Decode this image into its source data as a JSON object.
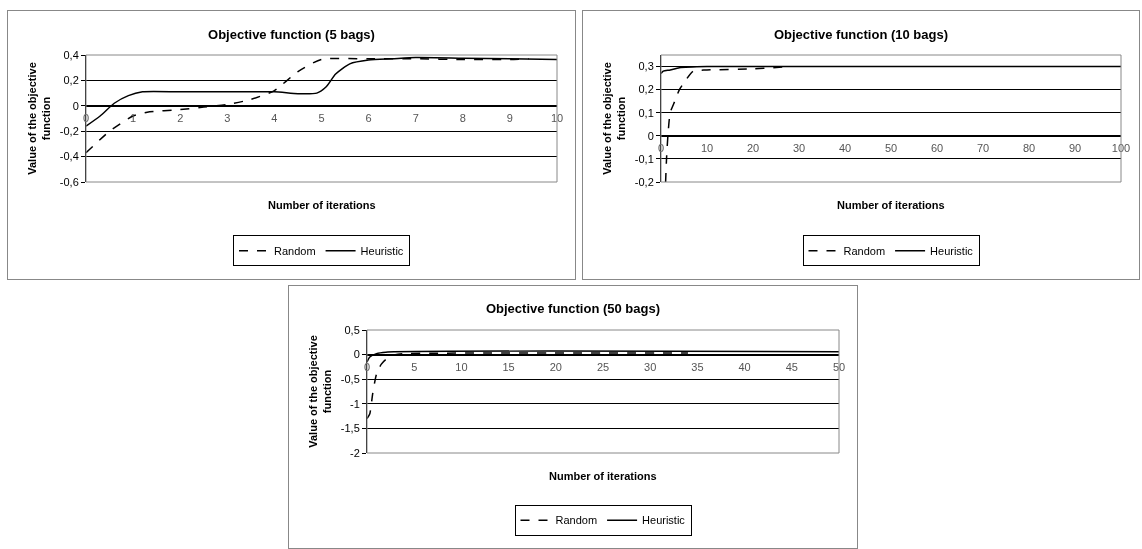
{
  "chart_data": [
    {
      "type": "line",
      "title": "Objective function (5 bags)",
      "xlabel": "Number of iterations",
      "ylabel": "Value of the objective function",
      "xlim": [
        0,
        10
      ],
      "xticks": [
        0,
        1,
        2,
        3,
        4,
        5,
        6,
        7,
        8,
        9,
        10
      ],
      "ylim": [
        -0.6,
        0.4
      ],
      "yticks": [
        {
          "value": -0.6,
          "label": "-0,6"
        },
        {
          "value": -0.4,
          "label": "-0,4"
        },
        {
          "value": -0.2,
          "label": "-0,2"
        },
        0,
        {
          "value": 0.2,
          "label": "0,2"
        },
        {
          "value": 0.4,
          "label": "0,4"
        }
      ],
      "grid": "y",
      "legend": "bottom",
      "marker": "none",
      "series": [
        {
          "name": "Random",
          "color": "#000000",
          "line_style": "dashed",
          "x": [
            0,
            0.5,
            1,
            1.3,
            2,
            2.5,
            3,
            3.5,
            4,
            4.5,
            5,
            6,
            7,
            8,
            9,
            9.4
          ],
          "values": [
            -0.37,
            -0.2,
            -0.08,
            -0.05,
            -0.03,
            -0.01,
            0.01,
            0.05,
            0.12,
            0.27,
            0.365,
            0.37,
            0.37,
            0.365,
            0.365,
            0.37
          ]
        },
        {
          "name": "Heuristic",
          "color": "#000000",
          "line_style": "solid",
          "x": [
            0,
            0.3,
            0.6,
            0.9,
            1.2,
            2,
            3,
            4,
            4.5,
            4.9,
            5.1,
            5.3,
            5.6,
            6,
            6.5,
            7,
            8,
            9,
            10
          ],
          "values": [
            -0.16,
            -0.08,
            0.02,
            0.08,
            0.11,
            0.11,
            0.11,
            0.11,
            0.095,
            0.1,
            0.15,
            0.25,
            0.33,
            0.36,
            0.37,
            0.38,
            0.375,
            0.37,
            0.365
          ]
        }
      ]
    },
    {
      "type": "line",
      "title": "Objective function (10 bags)",
      "xlabel": "Number of iterations",
      "ylabel": "Value of the objective function",
      "xlim": [
        0,
        100
      ],
      "xticks": [
        0,
        10,
        20,
        30,
        40,
        50,
        60,
        70,
        80,
        90,
        100
      ],
      "ylim": [
        -0.2,
        0.35
      ],
      "yticks": [
        {
          "value": -0.2,
          "label": "-0,2"
        },
        {
          "value": -0.1,
          "label": "-0,1"
        },
        0,
        {
          "value": 0.1,
          "label": "0,1"
        },
        {
          "value": 0.2,
          "label": "0,2"
        },
        {
          "value": 0.3,
          "label": "0,3"
        }
      ],
      "grid": "y",
      "legend": "bottom",
      "marker": "none",
      "series": [
        {
          "name": "Random",
          "color": "#000000",
          "line_style": "dashed",
          "x": [
            1,
            1.2,
            1.5,
            2,
            3,
            4,
            5,
            7,
            10,
            20,
            28
          ],
          "values": [
            -0.2,
            -0.1,
            0,
            0.1,
            0.15,
            0.2,
            0.23,
            0.28,
            0.285,
            0.29,
            0.3
          ]
        },
        {
          "name": "Heuristic",
          "color": "#000000",
          "line_style": "solid",
          "x": [
            0,
            0.5,
            2,
            4,
            10,
            100
          ],
          "values": [
            0.27,
            0.28,
            0.285,
            0.295,
            0.3,
            0.3
          ]
        }
      ]
    },
    {
      "type": "line",
      "title": "Objective function (50 bags)",
      "xlabel": "Number of iterations",
      "ylabel": "Value of the objective function",
      "xlim": [
        0,
        50
      ],
      "xticks": [
        0,
        5,
        10,
        15,
        20,
        25,
        30,
        35,
        40,
        45,
        50
      ],
      "ylim": [
        -2,
        0.5
      ],
      "yticks": [
        -2,
        {
          "value": -1.5,
          "label": "-1,5"
        },
        -1,
        {
          "value": -0.5,
          "label": "-0,5"
        },
        0,
        {
          "value": 0.5,
          "label": "0,5"
        }
      ],
      "grid": "y",
      "legend": "bottom",
      "marker": "none",
      "series": [
        {
          "name": "Random",
          "color": "#000000",
          "line_style": "dashed",
          "x": [
            0,
            0.3,
            0.6,
            1,
            1.5,
            2,
            3,
            4,
            34
          ],
          "values": [
            -1.3,
            -1.2,
            -0.8,
            -0.4,
            -0.2,
            -0.1,
            0,
            0.02,
            0.03
          ]
        },
        {
          "name": "Heuristic",
          "color": "#000000",
          "line_style": "solid",
          "x": [
            0,
            0.3,
            1,
            2,
            50
          ],
          "values": [
            -0.15,
            -0.05,
            0.02,
            0.05,
            0.06
          ]
        }
      ]
    }
  ]
}
